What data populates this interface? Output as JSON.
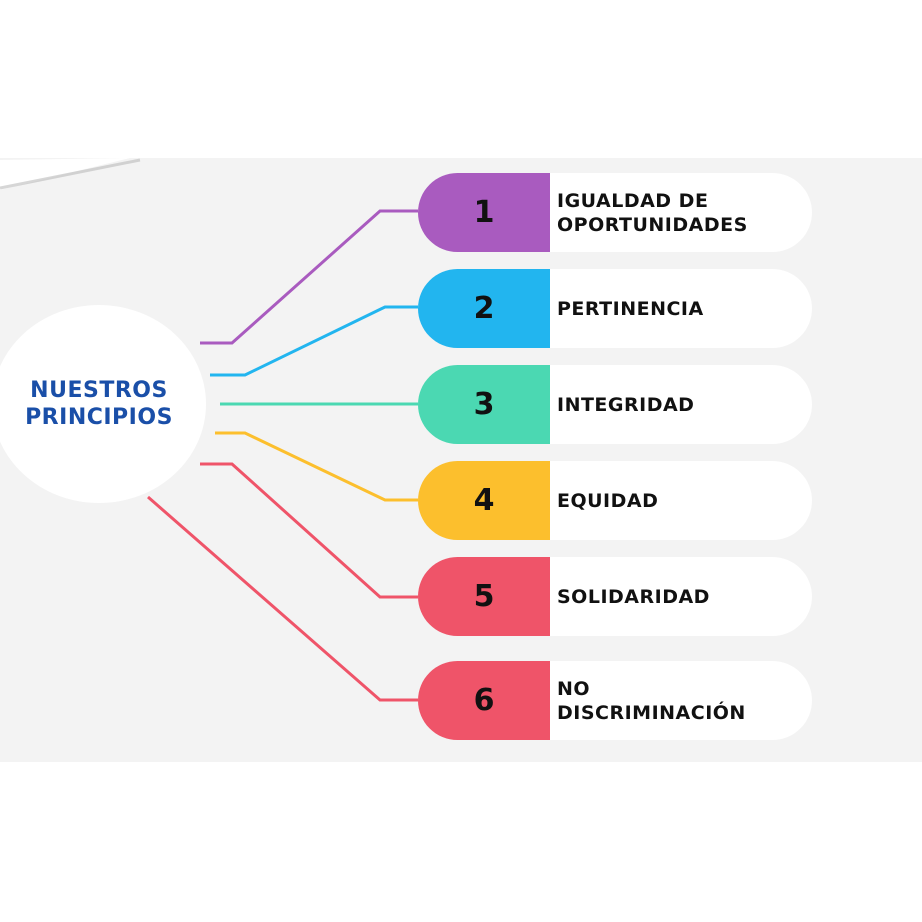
{
  "title": "NUESTROS PRINCIPIOS",
  "principles": [
    {
      "number": "1",
      "label": "IGUALDAD DE OPORTUNIDADES",
      "color": "#a95bbf"
    },
    {
      "number": "2",
      "label": "PERTINENCIA",
      "color": "#22b5ef"
    },
    {
      "number": "3",
      "label": "INTEGRIDAD",
      "color": "#4bd8b2"
    },
    {
      "number": "4",
      "label": "EQUIDAD",
      "color": "#fcbf2d"
    },
    {
      "number": "5",
      "label": "SOLIDARIDAD",
      "color": "#ef5469"
    },
    {
      "number": "6",
      "label": "NO DISCRIMINACIÓN",
      "color": "#ef5469"
    }
  ]
}
